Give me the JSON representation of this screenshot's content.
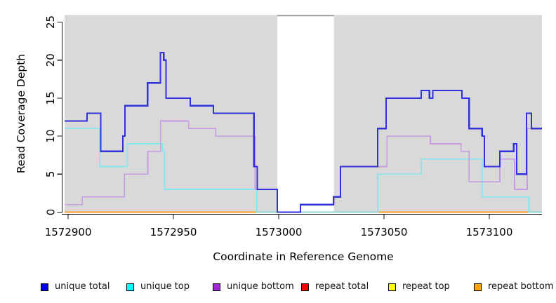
{
  "chart_data": {
    "type": "line",
    "subtype": "step-coverage",
    "title": "",
    "xlabel": "Coordinate in Reference Genome",
    "ylabel": "Read Coverage Depth",
    "x_domain": [
      1572898.3,
      1573125.0
    ],
    "y_domain": [
      0,
      25.94
    ],
    "x_ticks": [
      {
        "value": 1572900,
        "label": "1572900"
      },
      {
        "value": 1572950,
        "label": "1572950"
      },
      {
        "value": 1573000,
        "label": "1573000"
      },
      {
        "value": 1573050,
        "label": "1573050"
      },
      {
        "value": 1573100,
        "label": "1573100"
      }
    ],
    "y_ticks": [
      {
        "value": 0,
        "label": "0"
      },
      {
        "value": 5,
        "label": "5"
      },
      {
        "value": 10,
        "label": "10"
      },
      {
        "value": 15,
        "label": "15"
      },
      {
        "value": 20,
        "label": "20"
      },
      {
        "value": 25,
        "label": "25"
      }
    ],
    "plot_background": "#d9d9d9",
    "gap_region": {
      "from": 1572999.3,
      "to": 1573026.2,
      "fill": "#ffffff",
      "top_edge_color": "#9a9a9a"
    },
    "axis_color": "#1a1a1a",
    "legend_position": "bottom",
    "grid": false,
    "series": [
      {
        "name": "unique total",
        "line_color": "#3132db",
        "legend_color": "#0000e6",
        "stroke_width": 2.2,
        "opacity": 1,
        "points": [
          [
            1572898.3,
            12
          ],
          [
            1572909,
            13
          ],
          [
            1572915.5,
            8
          ],
          [
            1572926,
            10
          ],
          [
            1572927,
            14
          ],
          [
            1572937.7,
            17
          ],
          [
            1572943.8,
            21
          ],
          [
            1572945.4,
            20
          ],
          [
            1572946.5,
            15
          ],
          [
            1572958,
            14
          ],
          [
            1572969,
            13
          ],
          [
            1572988.2,
            6
          ],
          [
            1572989.8,
            3
          ],
          [
            1572999.3,
            0
          ],
          [
            1573010.3,
            1
          ],
          [
            1573026,
            2
          ],
          [
            1573029.3,
            6
          ],
          [
            1573047,
            11
          ],
          [
            1573051,
            15
          ],
          [
            1573067.7,
            16
          ],
          [
            1573071.6,
            15
          ],
          [
            1573073.2,
            16
          ],
          [
            1573087,
            15
          ],
          [
            1573090.4,
            11
          ],
          [
            1573096.6,
            10
          ],
          [
            1573097.7,
            6
          ],
          [
            1573105,
            8
          ],
          [
            1573111.6,
            9
          ],
          [
            1573113,
            5
          ],
          [
            1573117.7,
            13
          ],
          [
            1573120,
            11
          ]
        ]
      },
      {
        "name": "unique top",
        "line_color": "#74e9f2",
        "legend_color": "#00ffff",
        "stroke_width": 1.7,
        "opacity": 0.85,
        "points": [
          [
            1572898.3,
            11
          ],
          [
            1572915,
            6
          ],
          [
            1572928,
            9
          ],
          [
            1572944.8,
            8
          ],
          [
            1572945.8,
            3
          ],
          [
            1572989.6,
            0
          ],
          [
            1573047,
            5
          ],
          [
            1573067.7,
            7
          ],
          [
            1573096.6,
            2
          ],
          [
            1573118.8,
            0
          ]
        ]
      },
      {
        "name": "unique bottom",
        "line_color": "#c79be3",
        "legend_color": "#a428d4",
        "stroke_width": 1.7,
        "opacity": 1,
        "points": [
          [
            1572898.3,
            1
          ],
          [
            1572906.7,
            2
          ],
          [
            1572926.7,
            5
          ],
          [
            1572937.8,
            8
          ],
          [
            1572943.9,
            12
          ],
          [
            1572957.2,
            11
          ],
          [
            1572970,
            10
          ],
          [
            1572988.8,
            3
          ],
          [
            1572999.3,
            0
          ],
          [
            1573010.3,
            1
          ],
          [
            1573026.6,
            2
          ],
          [
            1573029.4,
            6
          ],
          [
            1573051.4,
            10
          ],
          [
            1573072,
            9
          ],
          [
            1573086.6,
            8
          ],
          [
            1573090.4,
            4
          ],
          [
            1573105,
            7
          ],
          [
            1573112,
            3
          ],
          [
            1573118,
            11
          ]
        ]
      },
      {
        "name": "repeat total",
        "line_color": "#e00000",
        "legend_color": "#ff0000",
        "stroke_width": 1.5,
        "opacity": 1,
        "points": [
          [
            1572898.3,
            0
          ]
        ]
      },
      {
        "name": "repeat top",
        "line_color": "#ffff00",
        "legend_color": "#ffff00",
        "stroke_width": 1.5,
        "opacity": 1,
        "points": [
          [
            1572898.3,
            0
          ]
        ]
      },
      {
        "name": "repeat bottom",
        "line_color": "#ff9d2e",
        "legend_color": "#ffa500",
        "stroke_width": 1.8,
        "opacity": 1,
        "points": [
          [
            1572898.3,
            0
          ]
        ]
      }
    ]
  }
}
